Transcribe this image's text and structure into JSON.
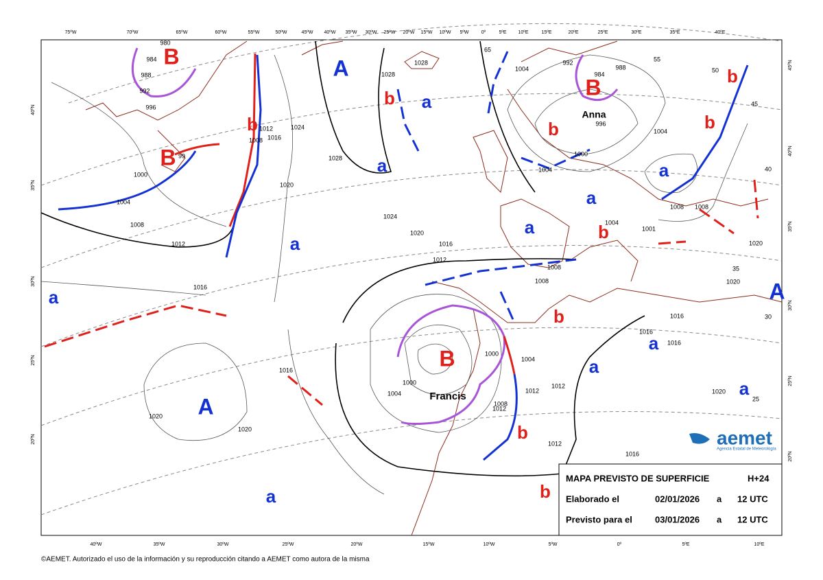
{
  "top_longitudes": [
    "75ºW",
    "70ºW",
    "65ºW",
    "60ºW",
    "55ºW",
    "50ºW",
    "45ºW",
    "40ºW",
    "35ºW",
    "30ºW",
    "25ºW",
    "20ºW",
    "15ºW",
    "10ºW",
    "5ºW",
    "0º",
    "5ºE",
    "10ºE",
    "15ºE",
    "20ºE",
    "25ºE",
    "30ºE",
    "35ºE",
    "40ºE"
  ],
  "bottom_longitudes": [
    "40ºW",
    "35ºW",
    "30ºW",
    "25ºW",
    "20ºW",
    "15ºW",
    "10ºW",
    "5ºW",
    "0º",
    "5ºE",
    "10ºE"
  ],
  "left_latitudes": [
    "40ºN",
    "35ºN",
    "30ºN",
    "25ºN",
    "20ºN"
  ],
  "right_latitudes": [
    "45ºN",
    "40ºN",
    "35ºN",
    "30ºN",
    "25ºN",
    "20ºN"
  ],
  "centers": [
    "B",
    "B",
    "A",
    "b",
    "a",
    "b",
    "a",
    "a",
    "a",
    "A",
    "a",
    "B",
    "b",
    "b",
    "b",
    "a",
    "a",
    "a",
    "b",
    "b",
    "a",
    "a",
    "a",
    "B",
    "b",
    "b",
    "A"
  ],
  "isobar_labels": [
    "980",
    "984",
    "988",
    "992",
    "996",
    "99",
    "1000",
    "1004",
    "1008",
    "1012",
    "1016",
    "1020",
    "1020",
    "1016",
    "1012",
    "1008",
    "1016",
    "1024",
    "1020",
    "1028",
    "1028",
    "1028",
    "1024",
    "1020",
    "1016",
    "1012",
    "1008",
    "1008",
    "1004",
    "1000",
    "1000",
    "1004",
    "1008",
    "1012",
    "1012",
    "1012",
    "1012",
    "1016",
    "1016",
    "1016",
    "1016",
    "1020",
    "1020",
    "1004",
    "1004",
    "1008",
    "1008",
    "1001",
    "1000",
    "1004",
    "996",
    "1004",
    "992",
    "984",
    "988",
    "55",
    "50",
    "45",
    "40",
    "1020",
    "35",
    "30",
    "25",
    "65"
  ],
  "storm_names": [
    "Francis",
    "Anna"
  ],
  "info_box": {
    "title": "MAPA PREVISTO DE SUPERFICIE",
    "lead": "H+24",
    "rows": [
      [
        "Elaborado el",
        "02/01/2026",
        "a",
        "12 UTC"
      ],
      [
        "Previsto para el",
        "03/01/2026",
        "a",
        "12 UTC"
      ]
    ]
  },
  "logo": {
    "name": "aemet",
    "subtitle": "Agencia Estatal de Meteorología"
  },
  "footer": "©AEMET. Autorizado el uso de la información y su reproducción citando a AEMET como autora de la misma"
}
